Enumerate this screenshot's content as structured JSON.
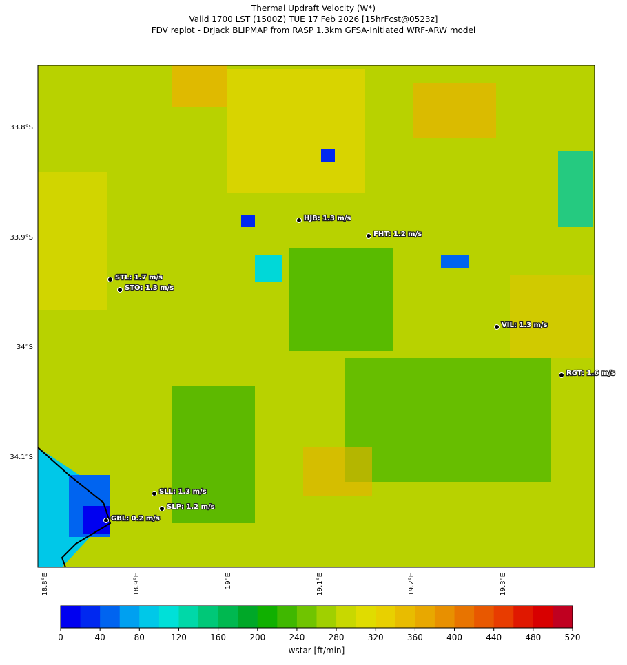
{
  "header": {
    "title": "Thermal Updraft Velocity (W*)",
    "subtitle": "Valid 1700 LST (1500Z) TUE 17 Feb 2026 [15hrFcst@0523z]",
    "source": "FDV replot - DrJack BLIPMAP from RASP 1.3km GFSA-Initiated WRF-ARW model"
  },
  "map": {
    "lat_ticks": [
      "33.8°S",
      "33.9°S",
      "34°S",
      "34.1°S"
    ],
    "lon_ticks": [
      "18.8°E",
      "18.9°E",
      "19°E",
      "19.1°E",
      "19.2°E",
      "19.3°E"
    ],
    "stations": [
      "STL: 1.7 m/s",
      "STO: 1.3 m/s",
      "HJB: 1.3 m/s",
      "FHT: 1.2 m/s",
      "VIL: 1.3 m/s",
      "RGT: 1.6 m/s",
      "SLL: 1.3 m/s",
      "SLP: 1.2 m/s",
      "GBL: 0.2 m/s"
    ]
  },
  "colorbar": {
    "label": "wstar [ft/min]",
    "ticks": [
      0,
      40,
      80,
      120,
      160,
      200,
      240,
      280,
      320,
      360,
      400,
      440,
      480,
      520
    ],
    "colors": [
      "#0000f0",
      "#0028f0",
      "#0064f0",
      "#00a0f0",
      "#00c8e8",
      "#00e0d8",
      "#00d8a8",
      "#00c878",
      "#00b850",
      "#00a828",
      "#10b000",
      "#40b800",
      "#70c400",
      "#a0d000",
      "#c8d800",
      "#e0dc00",
      "#e8d000",
      "#e8bc00",
      "#e8a800",
      "#e89000",
      "#e87400",
      "#e85800",
      "#e83c00",
      "#e01800",
      "#d80000",
      "#c00020"
    ]
  }
}
